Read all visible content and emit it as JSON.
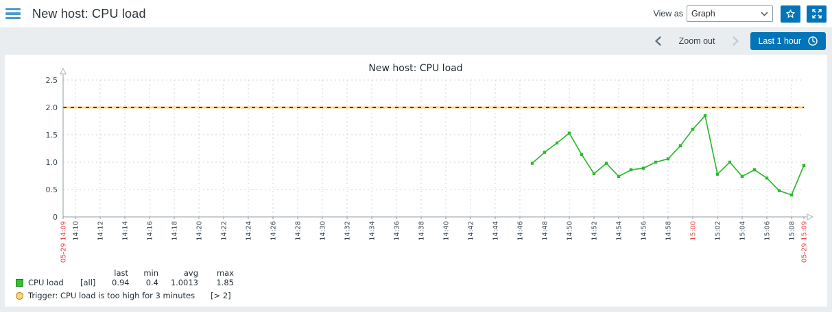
{
  "header": {
    "title": "New host: CPU load",
    "view_as_label": "View as",
    "view_as_value": "Graph"
  },
  "timebar": {
    "zoom_out_label": "Zoom out",
    "range_label": "Last 1 hour"
  },
  "colors": {
    "accent_blue": "#0275b8",
    "series_green": "#2cba2c",
    "trigger_yellow": "#ffd685",
    "trigger_dash": "#3a3d40",
    "red_label": "#ee4040",
    "axis": "#8d9ba6",
    "grid": "#ccd5db",
    "tick_text": "#38434c"
  },
  "chart_data": {
    "type": "line",
    "title": "New host: CPU load",
    "xlabel": "",
    "ylabel": "",
    "ylim": [
      0,
      2.5
    ],
    "grid": true,
    "y_ticks": [
      0,
      0.5,
      1,
      1.5,
      2,
      2.5
    ],
    "y_tick_labels": [
      "0",
      "0.5",
      "1.0",
      "1.5",
      "2.0",
      "2.5"
    ],
    "x_range": [
      "14:09",
      "15:09"
    ],
    "x_edge_labels": [
      "05-29 14:09",
      "05-29 15:09"
    ],
    "x_tick_labels": [
      "14:10",
      "14:12",
      "14:14",
      "14:16",
      "14:18",
      "14:20",
      "14:22",
      "14:24",
      "14:26",
      "14:28",
      "14:30",
      "14:32",
      "14:34",
      "14:36",
      "14:38",
      "14:40",
      "14:42",
      "14:44",
      "14:46",
      "14:48",
      "14:50",
      "14:52",
      "14:54",
      "14:56",
      "14:58",
      "15:00",
      "15:02",
      "15:04",
      "15:06",
      "15:08"
    ],
    "x_red_labels": [
      "05-29 14:09",
      "15:00",
      "05-29 15:09"
    ],
    "trigger": {
      "value": 2,
      "color_base": "#ffd685",
      "color_dash": "#3a3d40"
    },
    "series": [
      {
        "name": "CPU load",
        "color": "#2cba2c",
        "points": [
          {
            "time": "14:47",
            "value": 0.98
          },
          {
            "time": "14:48",
            "value": 1.18
          },
          {
            "time": "14:49",
            "value": 1.35
          },
          {
            "time": "14:50",
            "value": 1.53
          },
          {
            "time": "14:51",
            "value": 1.14
          },
          {
            "time": "14:52",
            "value": 0.79
          },
          {
            "time": "14:53",
            "value": 0.98
          },
          {
            "time": "14:54",
            "value": 0.74
          },
          {
            "time": "14:55",
            "value": 0.86
          },
          {
            "time": "14:56",
            "value": 0.89
          },
          {
            "time": "14:57",
            "value": 1.0
          },
          {
            "time": "14:58",
            "value": 1.06
          },
          {
            "time": "14:59",
            "value": 1.3
          },
          {
            "time": "15:00",
            "value": 1.6
          },
          {
            "time": "15:01",
            "value": 1.85
          },
          {
            "time": "15:02",
            "value": 0.78
          },
          {
            "time": "15:03",
            "value": 1.0
          },
          {
            "time": "15:04",
            "value": 0.74
          },
          {
            "time": "15:05",
            "value": 0.86
          },
          {
            "time": "15:06",
            "value": 0.71
          },
          {
            "time": "15:07",
            "value": 0.48
          },
          {
            "time": "15:08",
            "value": 0.4
          },
          {
            "time": "15:09",
            "value": 0.94
          }
        ]
      }
    ],
    "legend": {
      "headers": [
        "last",
        "min",
        "avg",
        "max"
      ],
      "rows": [
        {
          "name": "CPU load",
          "scope": "[all]",
          "last": "0.94",
          "min": "0.4",
          "avg": "1.0013",
          "max": "1.85"
        }
      ],
      "trigger": {
        "label": "Trigger: CPU load is too high for 3 minutes",
        "condition": "[> 2]"
      }
    }
  }
}
